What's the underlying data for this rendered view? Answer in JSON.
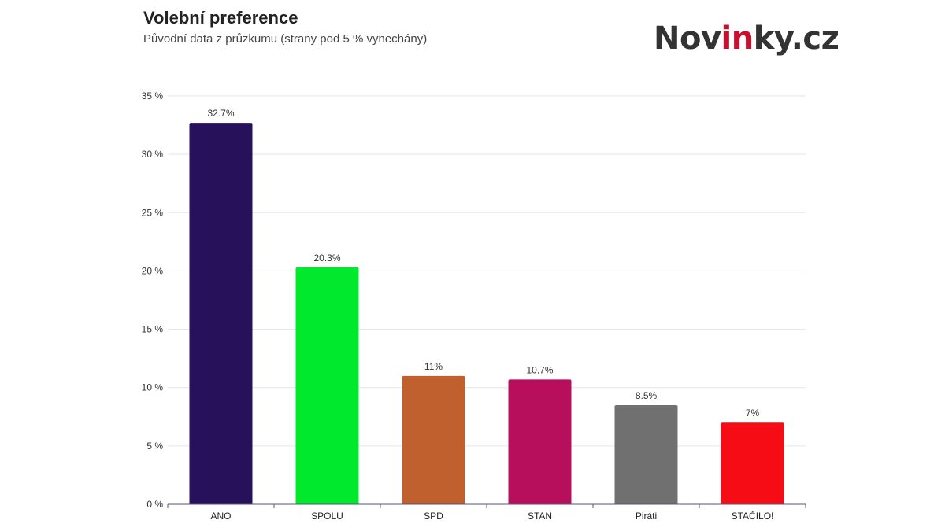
{
  "header": {
    "title": "Volební preference",
    "subtitle": "Původní data z průzkumu (strany pod 5 % vynechány)"
  },
  "logo": {
    "part1": "Nov",
    "part2": "in",
    "part3": "ky.cz",
    "accent_color": "#c8102e",
    "text_color": "#333333"
  },
  "chart_data": {
    "type": "bar",
    "title": "Volební preference",
    "subtitle": "Původní data z průzkumu (strany pod 5 % vynechány)",
    "categories": [
      "ANO",
      "SPOLU",
      "SPD",
      "STAN",
      "Piráti",
      "STAČILO!"
    ],
    "values": [
      32.7,
      20.3,
      11,
      10.7,
      8.5,
      7
    ],
    "data_labels": [
      "32.7%",
      "20.3%",
      "11%",
      "10.7%",
      "8.5%",
      "7%"
    ],
    "colors": [
      "#27115a",
      "#00e92c",
      "#c0602e",
      "#b80f5c",
      "#707070",
      "#f50c14"
    ],
    "ylim": [
      0,
      35
    ],
    "yticks": [
      0,
      5,
      10,
      15,
      20,
      25,
      30,
      35
    ],
    "ytick_labels": [
      "0 %",
      "5 %",
      "10 %",
      "15 %",
      "20 %",
      "25 %",
      "30 %",
      "35 %"
    ],
    "xlabel": "",
    "ylabel": "",
    "grid": true,
    "legend": false
  }
}
